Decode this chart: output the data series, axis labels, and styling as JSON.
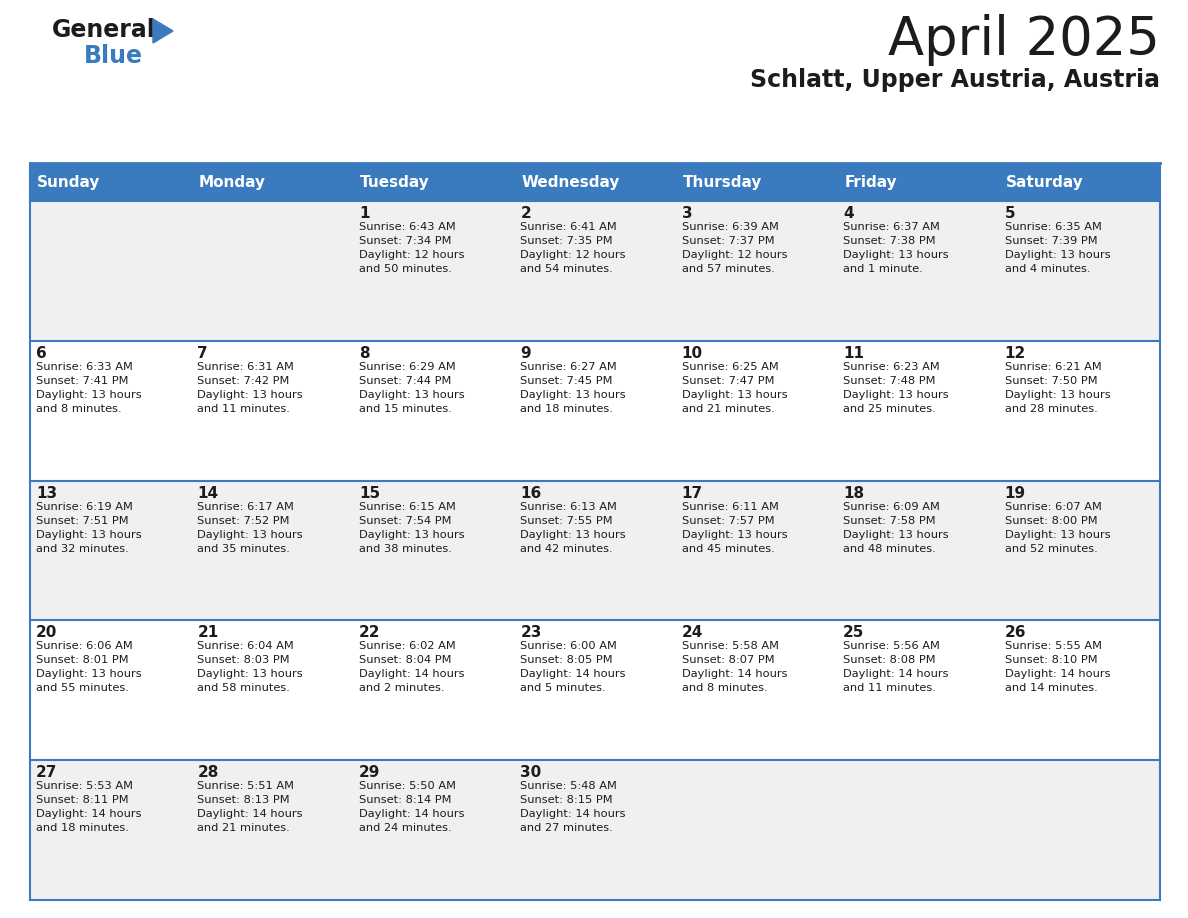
{
  "title": "April 2025",
  "subtitle": "Schlatt, Upper Austria, Austria",
  "header_bg": "#3a7bbf",
  "header_text": "#ffffff",
  "row_bg_odd": "#f0f0f0",
  "row_bg_even": "#ffffff",
  "border_color": "#3a7bbf",
  "day_headers": [
    "Sunday",
    "Monday",
    "Tuesday",
    "Wednesday",
    "Thursday",
    "Friday",
    "Saturday"
  ],
  "weeks": [
    [
      {
        "day": "",
        "sunrise": "",
        "sunset": "",
        "daylight": ""
      },
      {
        "day": "",
        "sunrise": "",
        "sunset": "",
        "daylight": ""
      },
      {
        "day": "1",
        "sunrise": "Sunrise: 6:43 AM",
        "sunset": "Sunset: 7:34 PM",
        "daylight": "Daylight: 12 hours\nand 50 minutes."
      },
      {
        "day": "2",
        "sunrise": "Sunrise: 6:41 AM",
        "sunset": "Sunset: 7:35 PM",
        "daylight": "Daylight: 12 hours\nand 54 minutes."
      },
      {
        "day": "3",
        "sunrise": "Sunrise: 6:39 AM",
        "sunset": "Sunset: 7:37 PM",
        "daylight": "Daylight: 12 hours\nand 57 minutes."
      },
      {
        "day": "4",
        "sunrise": "Sunrise: 6:37 AM",
        "sunset": "Sunset: 7:38 PM",
        "daylight": "Daylight: 13 hours\nand 1 minute."
      },
      {
        "day": "5",
        "sunrise": "Sunrise: 6:35 AM",
        "sunset": "Sunset: 7:39 PM",
        "daylight": "Daylight: 13 hours\nand 4 minutes."
      }
    ],
    [
      {
        "day": "6",
        "sunrise": "Sunrise: 6:33 AM",
        "sunset": "Sunset: 7:41 PM",
        "daylight": "Daylight: 13 hours\nand 8 minutes."
      },
      {
        "day": "7",
        "sunrise": "Sunrise: 6:31 AM",
        "sunset": "Sunset: 7:42 PM",
        "daylight": "Daylight: 13 hours\nand 11 minutes."
      },
      {
        "day": "8",
        "sunrise": "Sunrise: 6:29 AM",
        "sunset": "Sunset: 7:44 PM",
        "daylight": "Daylight: 13 hours\nand 15 minutes."
      },
      {
        "day": "9",
        "sunrise": "Sunrise: 6:27 AM",
        "sunset": "Sunset: 7:45 PM",
        "daylight": "Daylight: 13 hours\nand 18 minutes."
      },
      {
        "day": "10",
        "sunrise": "Sunrise: 6:25 AM",
        "sunset": "Sunset: 7:47 PM",
        "daylight": "Daylight: 13 hours\nand 21 minutes."
      },
      {
        "day": "11",
        "sunrise": "Sunrise: 6:23 AM",
        "sunset": "Sunset: 7:48 PM",
        "daylight": "Daylight: 13 hours\nand 25 minutes."
      },
      {
        "day": "12",
        "sunrise": "Sunrise: 6:21 AM",
        "sunset": "Sunset: 7:50 PM",
        "daylight": "Daylight: 13 hours\nand 28 minutes."
      }
    ],
    [
      {
        "day": "13",
        "sunrise": "Sunrise: 6:19 AM",
        "sunset": "Sunset: 7:51 PM",
        "daylight": "Daylight: 13 hours\nand 32 minutes."
      },
      {
        "day": "14",
        "sunrise": "Sunrise: 6:17 AM",
        "sunset": "Sunset: 7:52 PM",
        "daylight": "Daylight: 13 hours\nand 35 minutes."
      },
      {
        "day": "15",
        "sunrise": "Sunrise: 6:15 AM",
        "sunset": "Sunset: 7:54 PM",
        "daylight": "Daylight: 13 hours\nand 38 minutes."
      },
      {
        "day": "16",
        "sunrise": "Sunrise: 6:13 AM",
        "sunset": "Sunset: 7:55 PM",
        "daylight": "Daylight: 13 hours\nand 42 minutes."
      },
      {
        "day": "17",
        "sunrise": "Sunrise: 6:11 AM",
        "sunset": "Sunset: 7:57 PM",
        "daylight": "Daylight: 13 hours\nand 45 minutes."
      },
      {
        "day": "18",
        "sunrise": "Sunrise: 6:09 AM",
        "sunset": "Sunset: 7:58 PM",
        "daylight": "Daylight: 13 hours\nand 48 minutes."
      },
      {
        "day": "19",
        "sunrise": "Sunrise: 6:07 AM",
        "sunset": "Sunset: 8:00 PM",
        "daylight": "Daylight: 13 hours\nand 52 minutes."
      }
    ],
    [
      {
        "day": "20",
        "sunrise": "Sunrise: 6:06 AM",
        "sunset": "Sunset: 8:01 PM",
        "daylight": "Daylight: 13 hours\nand 55 minutes."
      },
      {
        "day": "21",
        "sunrise": "Sunrise: 6:04 AM",
        "sunset": "Sunset: 8:03 PM",
        "daylight": "Daylight: 13 hours\nand 58 minutes."
      },
      {
        "day": "22",
        "sunrise": "Sunrise: 6:02 AM",
        "sunset": "Sunset: 8:04 PM",
        "daylight": "Daylight: 14 hours\nand 2 minutes."
      },
      {
        "day": "23",
        "sunrise": "Sunrise: 6:00 AM",
        "sunset": "Sunset: 8:05 PM",
        "daylight": "Daylight: 14 hours\nand 5 minutes."
      },
      {
        "day": "24",
        "sunrise": "Sunrise: 5:58 AM",
        "sunset": "Sunset: 8:07 PM",
        "daylight": "Daylight: 14 hours\nand 8 minutes."
      },
      {
        "day": "25",
        "sunrise": "Sunrise: 5:56 AM",
        "sunset": "Sunset: 8:08 PM",
        "daylight": "Daylight: 14 hours\nand 11 minutes."
      },
      {
        "day": "26",
        "sunrise": "Sunrise: 5:55 AM",
        "sunset": "Sunset: 8:10 PM",
        "daylight": "Daylight: 14 hours\nand 14 minutes."
      }
    ],
    [
      {
        "day": "27",
        "sunrise": "Sunrise: 5:53 AM",
        "sunset": "Sunset: 8:11 PM",
        "daylight": "Daylight: 14 hours\nand 18 minutes."
      },
      {
        "day": "28",
        "sunrise": "Sunrise: 5:51 AM",
        "sunset": "Sunset: 8:13 PM",
        "daylight": "Daylight: 14 hours\nand 21 minutes."
      },
      {
        "day": "29",
        "sunrise": "Sunrise: 5:50 AM",
        "sunset": "Sunset: 8:14 PM",
        "daylight": "Daylight: 14 hours\nand 24 minutes."
      },
      {
        "day": "30",
        "sunrise": "Sunrise: 5:48 AM",
        "sunset": "Sunset: 8:15 PM",
        "daylight": "Daylight: 14 hours\nand 27 minutes."
      },
      {
        "day": "",
        "sunrise": "",
        "sunset": "",
        "daylight": ""
      },
      {
        "day": "",
        "sunrise": "",
        "sunset": "",
        "daylight": ""
      },
      {
        "day": "",
        "sunrise": "",
        "sunset": "",
        "daylight": ""
      }
    ]
  ]
}
